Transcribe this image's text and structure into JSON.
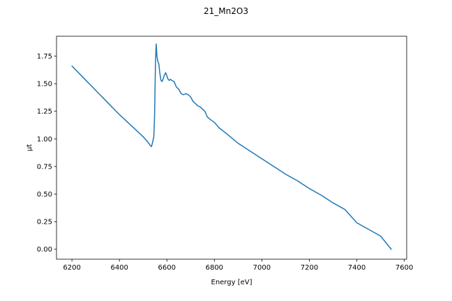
{
  "figure": {
    "title": "21_Mn2O3"
  },
  "chart_data": {
    "type": "line",
    "title": "21_Mn2O3",
    "xlabel": "Energy [eV]",
    "ylabel": "μt",
    "xlim": [
      6135,
      7610
    ],
    "ylim": [
      -0.09,
      1.93
    ],
    "grid": false,
    "legend": "none",
    "xticks": [
      6200,
      6400,
      6600,
      6800,
      7000,
      7200,
      7400,
      7600
    ],
    "xtick_labels": [
      "6200",
      "6400",
      "6600",
      "6800",
      "7000",
      "7200",
      "7400",
      "7600"
    ],
    "yticks": [
      0.0,
      0.25,
      0.5,
      0.75,
      1.0,
      1.25,
      1.5,
      1.75
    ],
    "ytick_labels": [
      "0.00",
      "0.25",
      "0.50",
      "0.75",
      "1.00",
      "1.25",
      "1.50",
      "1.75"
    ],
    "series": [
      {
        "color": "#1f77b4",
        "x": [
          6200,
          6250,
          6300,
          6350,
          6400,
          6450,
          6500,
          6520,
          6530,
          6535,
          6540,
          6545,
          6548,
          6550,
          6552,
          6555,
          6558,
          6562,
          6566,
          6570,
          6575,
          6580,
          6585,
          6590,
          6595,
          6600,
          6605,
          6610,
          6615,
          6620,
          6630,
          6640,
          6650,
          6660,
          6670,
          6680,
          6690,
          6700,
          6710,
          6720,
          6730,
          6740,
          6750,
          6760,
          6770,
          6780,
          6800,
          6820,
          6850,
          6900,
          6950,
          7000,
          7050,
          7100,
          7150,
          7200,
          7250,
          7300,
          7350,
          7400,
          7450,
          7500,
          7545
        ],
        "y": [
          1.66,
          1.55,
          1.44,
          1.33,
          1.22,
          1.12,
          1.02,
          0.97,
          0.94,
          0.93,
          0.97,
          1.02,
          1.2,
          1.45,
          1.7,
          1.86,
          1.75,
          1.7,
          1.68,
          1.6,
          1.53,
          1.52,
          1.55,
          1.58,
          1.6,
          1.57,
          1.54,
          1.53,
          1.54,
          1.53,
          1.52,
          1.47,
          1.45,
          1.41,
          1.4,
          1.41,
          1.4,
          1.38,
          1.34,
          1.32,
          1.3,
          1.29,
          1.27,
          1.25,
          1.2,
          1.18,
          1.15,
          1.1,
          1.05,
          0.96,
          0.89,
          0.82,
          0.75,
          0.68,
          0.62,
          0.55,
          0.49,
          0.42,
          0.36,
          0.24,
          0.18,
          0.12,
          0.0
        ]
      }
    ]
  }
}
